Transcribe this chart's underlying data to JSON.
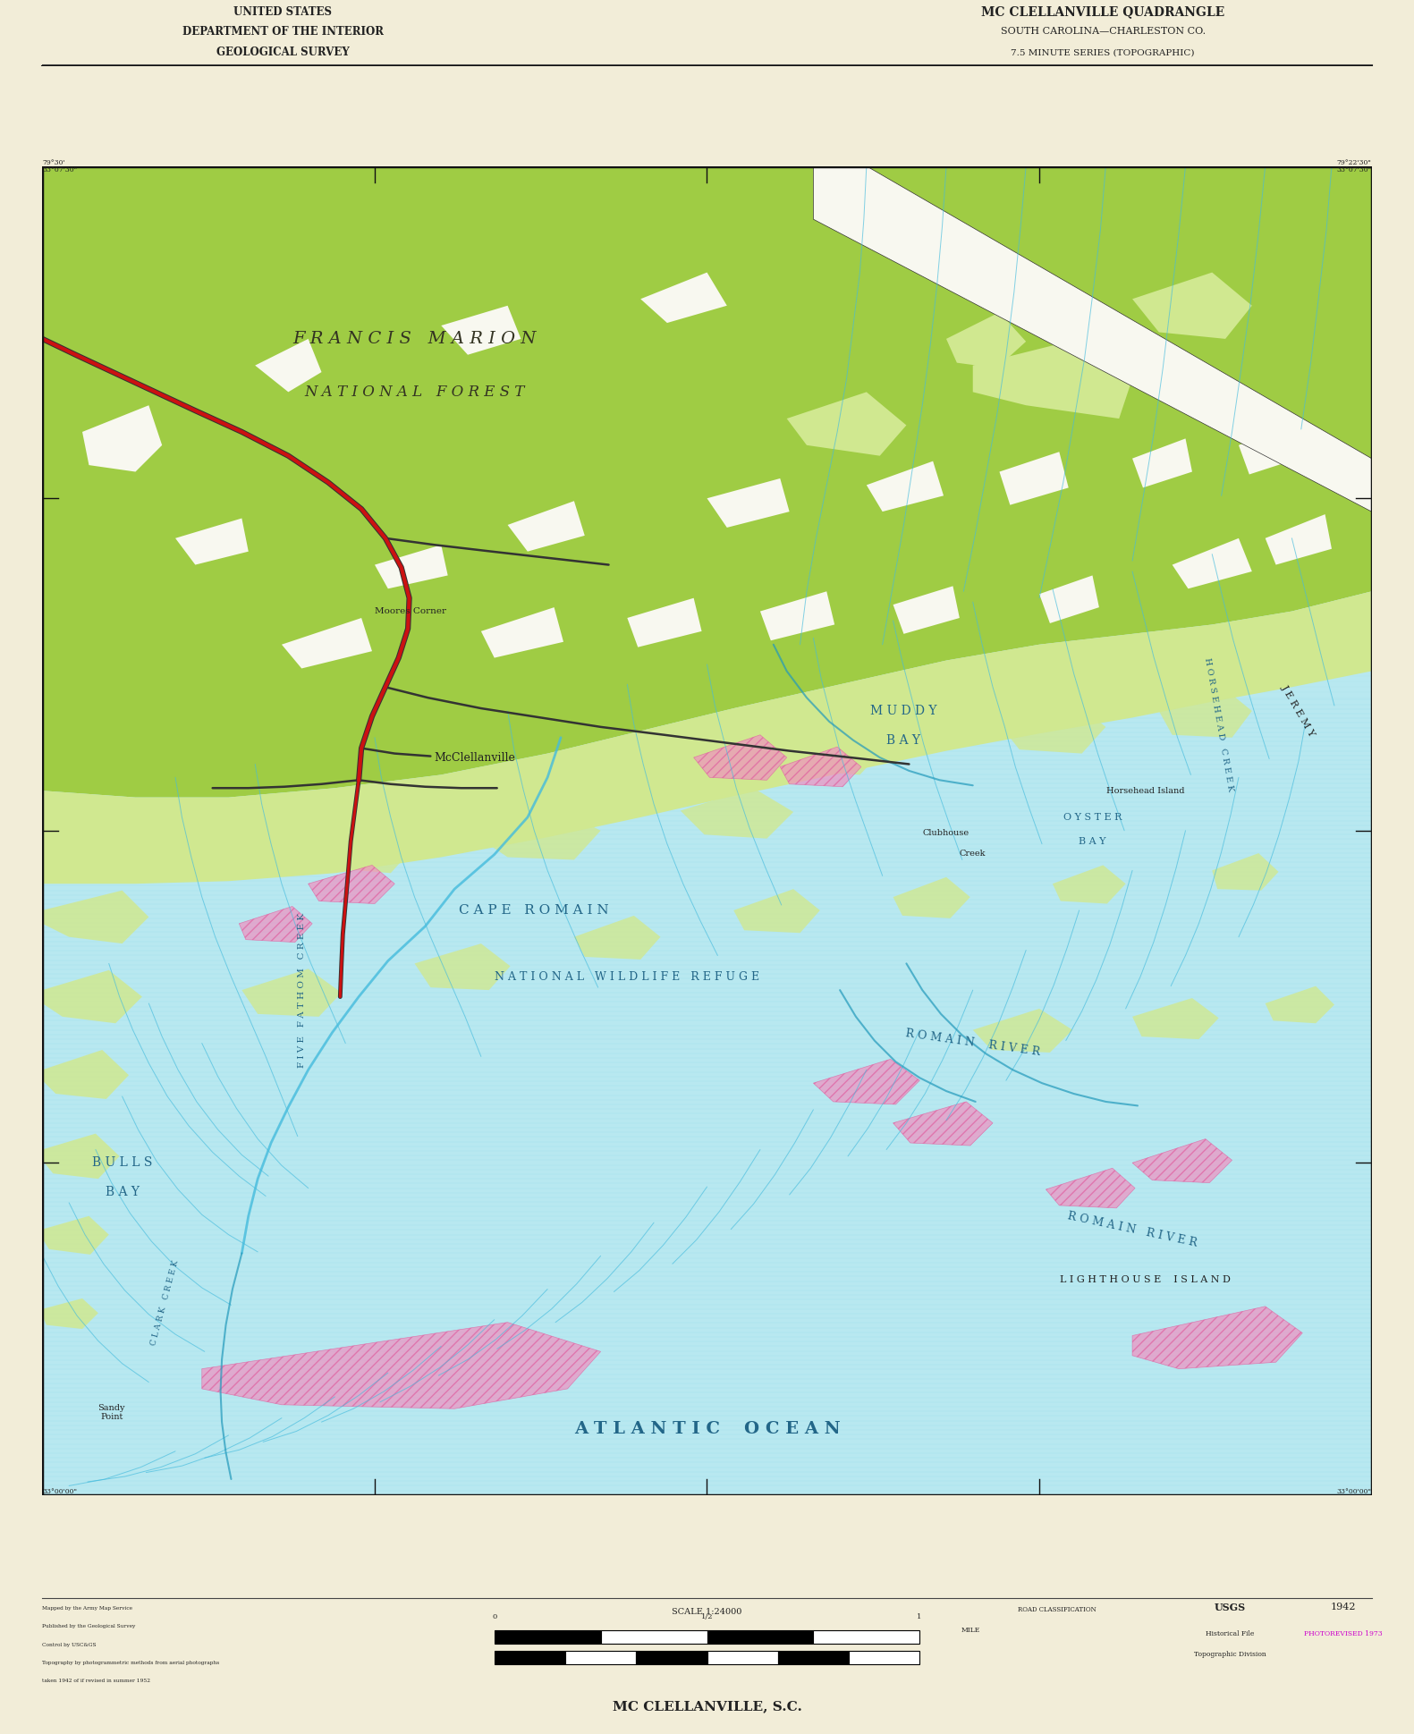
{
  "title_left_line1": "UNITED STATES",
  "title_left_line2": "DEPARTMENT OF THE INTERIOR",
  "title_left_line3": "GEOLOGICAL SURVEY",
  "title_right_line1": "MC CLELLANVILLE QUADRANGLE",
  "title_right_line2": "SOUTH CAROLINA—CHARLESTON CO.",
  "title_right_line3": "7.5 MINUTE SERIES (TOPOGRAPHIC)",
  "map_name": "MC CLELLANVILLE, S.C.",
  "map_year": "1942",
  "map_scale": "24000",
  "usgs_label": "USGS",
  "historical_file": "Historical File",
  "topo_division": "Topographic Division",
  "photorevised": "PHOTOREVISED 1973",
  "bg_color": "#f2edd8",
  "water_color": "#b8e8f0",
  "water_deep": "#9fd8ec",
  "land_bright": "#9fcc44",
  "land_mid": "#b8d860",
  "land_light": "#d0e890",
  "white_area": "#f8f8f0",
  "marsh_white": "#e8f4e0",
  "beach_sand": "#f0ecca",
  "road_red": "#cc1111",
  "road_black": "#333333",
  "road_gray": "#777777",
  "creek_blue": "#44bbdd",
  "creek_dark": "#2299bb",
  "contour_brown": "#c08040",
  "text_dark": "#222222",
  "text_blue": "#226688",
  "pink_fill": "#e060a0",
  "pink_light": "#f090c0",
  "border_color": "#111111",
  "scale_bar_color": "#111111",
  "header_separator": "#444444",
  "grid_blue": "#99ddee"
}
